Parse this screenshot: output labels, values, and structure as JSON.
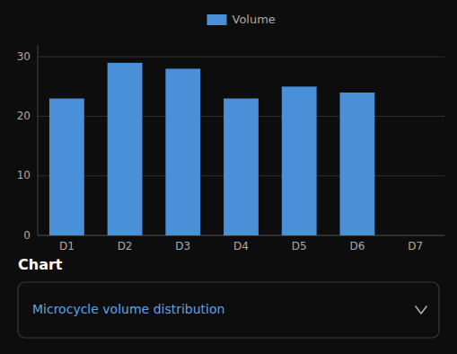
{
  "chart_data": {
    "type": "bar",
    "categories": [
      "D1",
      "D2",
      "D3",
      "D4",
      "D5",
      "D6",
      "D7"
    ],
    "series": [
      {
        "name": "Volume",
        "color": "#4a90d9",
        "values": [
          23,
          29,
          28,
          23,
          25,
          24,
          0
        ]
      }
    ],
    "ylim": [
      0,
      32
    ],
    "yticks": [
      0,
      10,
      20,
      30
    ],
    "grid": true,
    "legend": "top"
  },
  "heading": "Chart",
  "dropdown_label": "Microcycle volume distribution"
}
